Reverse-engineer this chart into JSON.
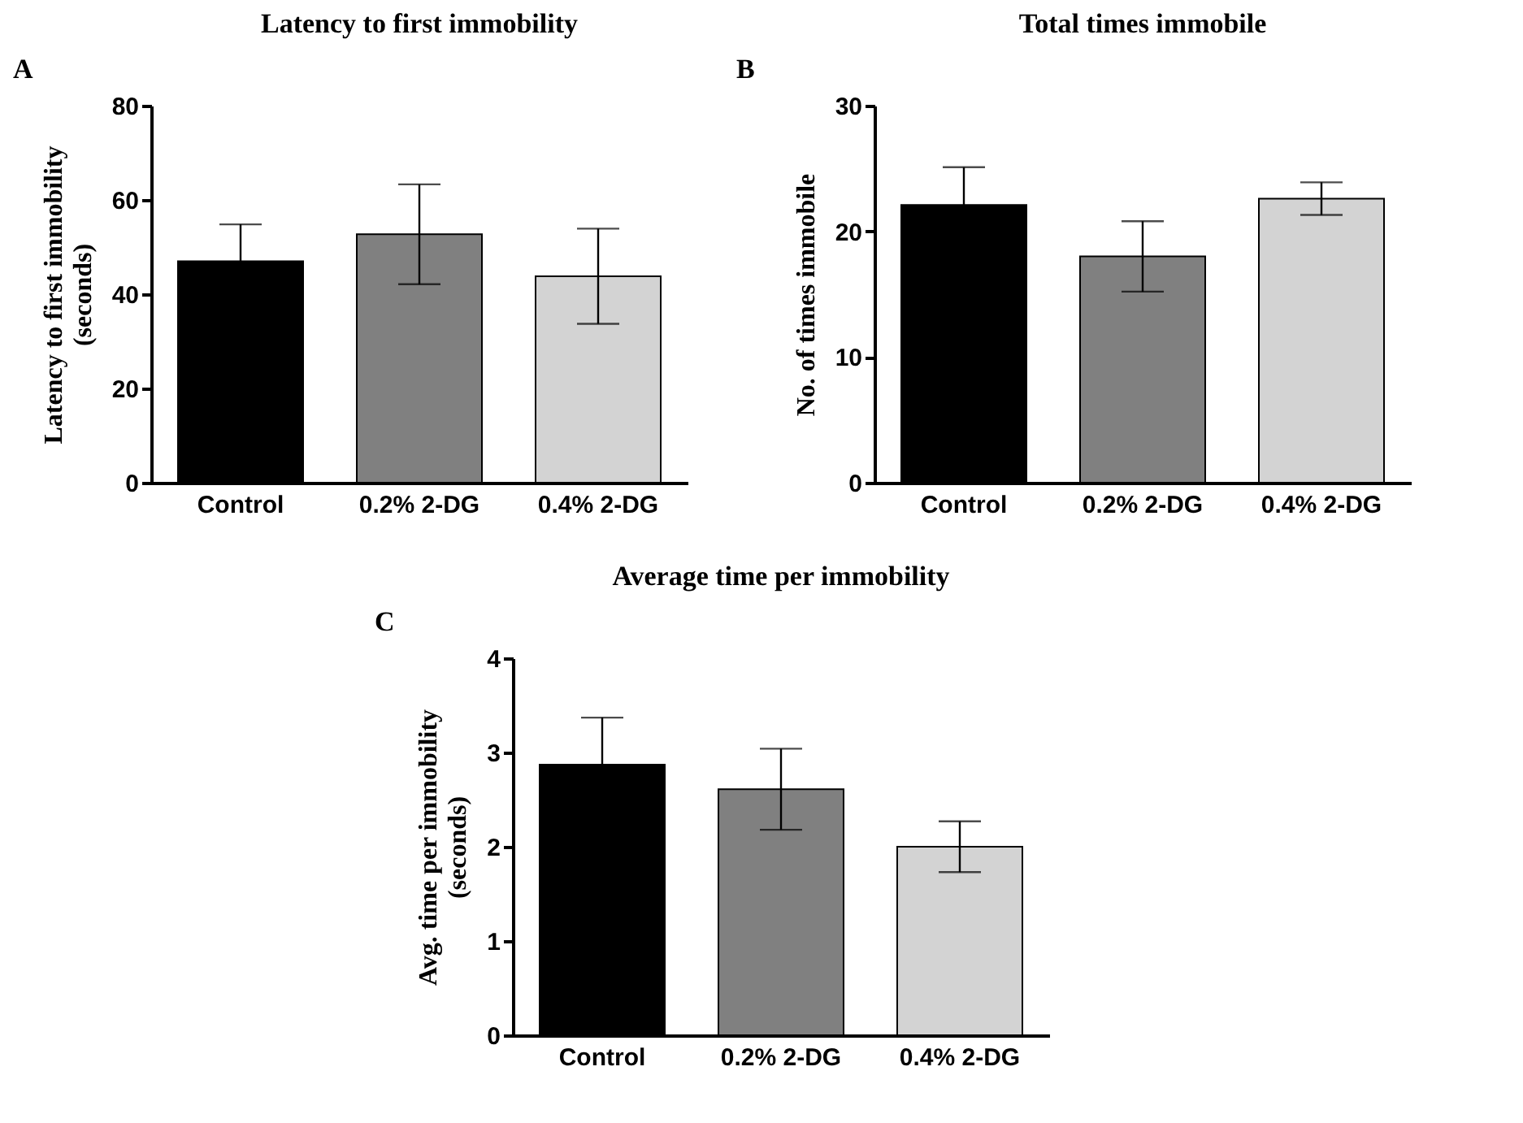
{
  "chart_data": [
    {
      "type": "bar",
      "title": "Latency to first immobility",
      "ylabel": "Latency to first immobility\n(seconds)",
      "categories": [
        "Control",
        "0.2% 2-DG",
        "0.4% 2-DG"
      ],
      "values": [
        47,
        52.7,
        43.8
      ],
      "colors": [
        "#000000",
        "#808080",
        "#d3d3d3"
      ],
      "errors": [
        7.8,
        10.6,
        10.1
      ],
      "ylim": [
        0,
        80
      ],
      "yticks": [
        0,
        20,
        40,
        60,
        80
      ],
      "annotations": [
        "A"
      ]
    },
    {
      "type": "bar",
      "title": "Total times immobile",
      "ylabel": "No. of times immobile",
      "categories": [
        "Control",
        "0.2% 2-DG",
        "0.4% 2-DG"
      ],
      "values": [
        22.1,
        18.0,
        22.6
      ],
      "colors": [
        "#000000",
        "#808080",
        "#d3d3d3"
      ],
      "errors": [
        3.0,
        2.8,
        1.3
      ],
      "ylim": [
        0,
        30
      ],
      "yticks": [
        0,
        10,
        20,
        30
      ],
      "annotations": [
        "B"
      ]
    },
    {
      "type": "bar",
      "title": "Average time per immobility",
      "ylabel": "Avg. time per immobility\n(seconds)",
      "categories": [
        "Control",
        "0.2% 2-DG",
        "0.4% 2-DG"
      ],
      "values": [
        2.87,
        2.61,
        2.0
      ],
      "colors": [
        "#000000",
        "#808080",
        "#d3d3d3"
      ],
      "errors": [
        0.5,
        0.43,
        0.27
      ],
      "ylim": [
        0,
        4
      ],
      "yticks": [
        0,
        1,
        2,
        3,
        4
      ],
      "annotations": [
        "C"
      ]
    }
  ]
}
